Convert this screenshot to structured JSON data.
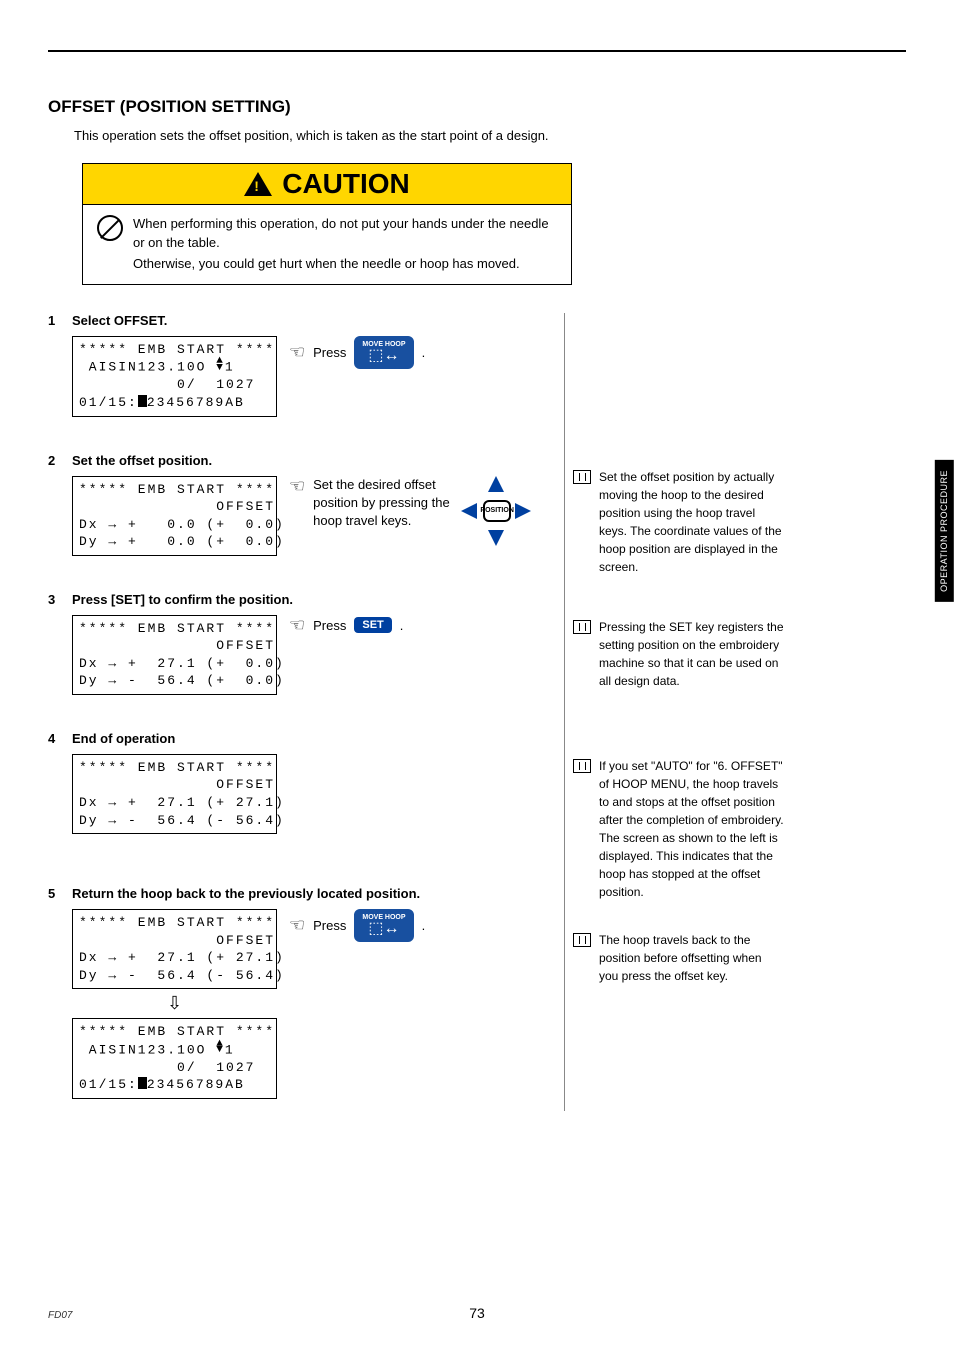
{
  "section_title": "OFFSET (POSITION SETTING)",
  "intro": "This operation sets the offset position, which is taken as the start point of a design.",
  "caution": {
    "title": "CAUTION",
    "line1": "When performing this operation, do not put your hands under the needle or on the table.",
    "line2": "Otherwise, you could get hurt when the needle or hoop has moved."
  },
  "steps": [
    {
      "num": "1",
      "title": "Select OFFSET.",
      "screen": "***** EMB START ****\n AISIN123.10O ⬍1\n          0/  1027\n01/15:▮23456789AB<D>",
      "action_label": "Press",
      "button": "MOVE HOOP"
    },
    {
      "num": "2",
      "title": "Set the offset position.",
      "screen": "***** EMB START ****\n              OFFSET\nDx → +   0.0 (+  0.0)\nDy → +   0.0 (+  0.0)",
      "action_text": "Set the desired offset position by pressing the hoop travel keys.",
      "dpad_center": "POSITION"
    },
    {
      "num": "3",
      "title": "Press [SET] to confirm the position.",
      "screen": "***** EMB START ****\n              OFFSET\nDx → +  27.1 (+  0.0)\nDy → -  56.4 (+  0.0)",
      "action_label": "Press",
      "button": "SET"
    },
    {
      "num": "4",
      "title": "End of operation",
      "screen": "***** EMB START ****\n              OFFSET\nDx → +  27.1 (+ 27.1)\nDy → -  56.4 (- 56.4)"
    },
    {
      "num": "5",
      "title": "Return the hoop back to the previously located position.",
      "screen_a": "***** EMB START ****\n              OFFSET\nDx → +  27.1 (+ 27.1)\nDy → -  56.4 (- 56.4)",
      "screen_b": "***** EMB START ****\n AISIN123.10O ⬍1\n          0/  1027\n01/15:▮23456789AB<D>",
      "action_label": "Press",
      "button": "MOVE HOOP"
    }
  ],
  "notes": [
    "Set the offset position by actually moving the hoop to the desired position using the hoop travel keys. The coordinate values of the hoop position are displayed in the screen.",
    "Pressing the SET key registers the setting position on the embroidery machine so that it can be used on all design data.",
    "If you set \"AUTO\" for \"6. OFFSET\" of HOOP MENU, the hoop travels to and stops at the offset position after the completion of embroidery. The screen as shown to the left is displayed.  This indicates that the hoop has stopped at the offset position.",
    "The hoop travels back to the position before offsetting when you press the offset key."
  ],
  "side_tab": "OPERATION\nPROCEDURE",
  "page_number": "73",
  "doc_id": "FD07"
}
